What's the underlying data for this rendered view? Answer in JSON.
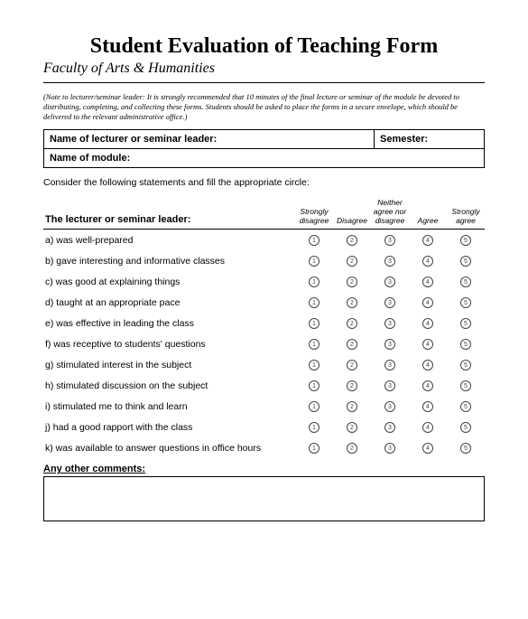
{
  "title": "Student Evaluation of Teaching Form",
  "subtitle": "Faculty of Arts & Humanities",
  "note": "(Note to lecturer/seminar leader: It is strongly recommended that 10 minutes of the final lecture or seminar of the module be devoted to distributing, completing, and collecting these forms. Students should be asked to place the forms in a secure envelope, which should be delivered to the relevant administrative office.)",
  "info": {
    "lecturer_label": "Name of lecturer or seminar leader:",
    "semester_label": "Semester:",
    "module_label": "Name of module:"
  },
  "instruction": "Consider the following statements and fill the appropriate circle:",
  "section_header": "The lecturer or seminar leader:",
  "scale": {
    "h1": "Strongly disagree",
    "h2": "Disagree",
    "h3": "Neither agree nor disagree",
    "h4": "Agree",
    "h5": "Strongly agree"
  },
  "statements": {
    "a": "a) was well-prepared",
    "b": "b) gave interesting and informative classes",
    "c": "c) was good at explaining things",
    "d": "d) taught at an appropriate pace",
    "e": "e) was effective in leading the class",
    "f": "f) was receptive to students' questions",
    "g": "g)  stimulated interest in the subject",
    "h": "h) stimulated discussion on the subject",
    "i": "i) stimulated me to think and learn",
    "j": "j) had a good rapport with the class",
    "k": "k) was available to answer questions in office hours"
  },
  "circle_labels": {
    "c1": "1",
    "c2": "2",
    "c3": "3",
    "c4": "4",
    "c5": "5"
  },
  "comments_label": "Any other comments:"
}
